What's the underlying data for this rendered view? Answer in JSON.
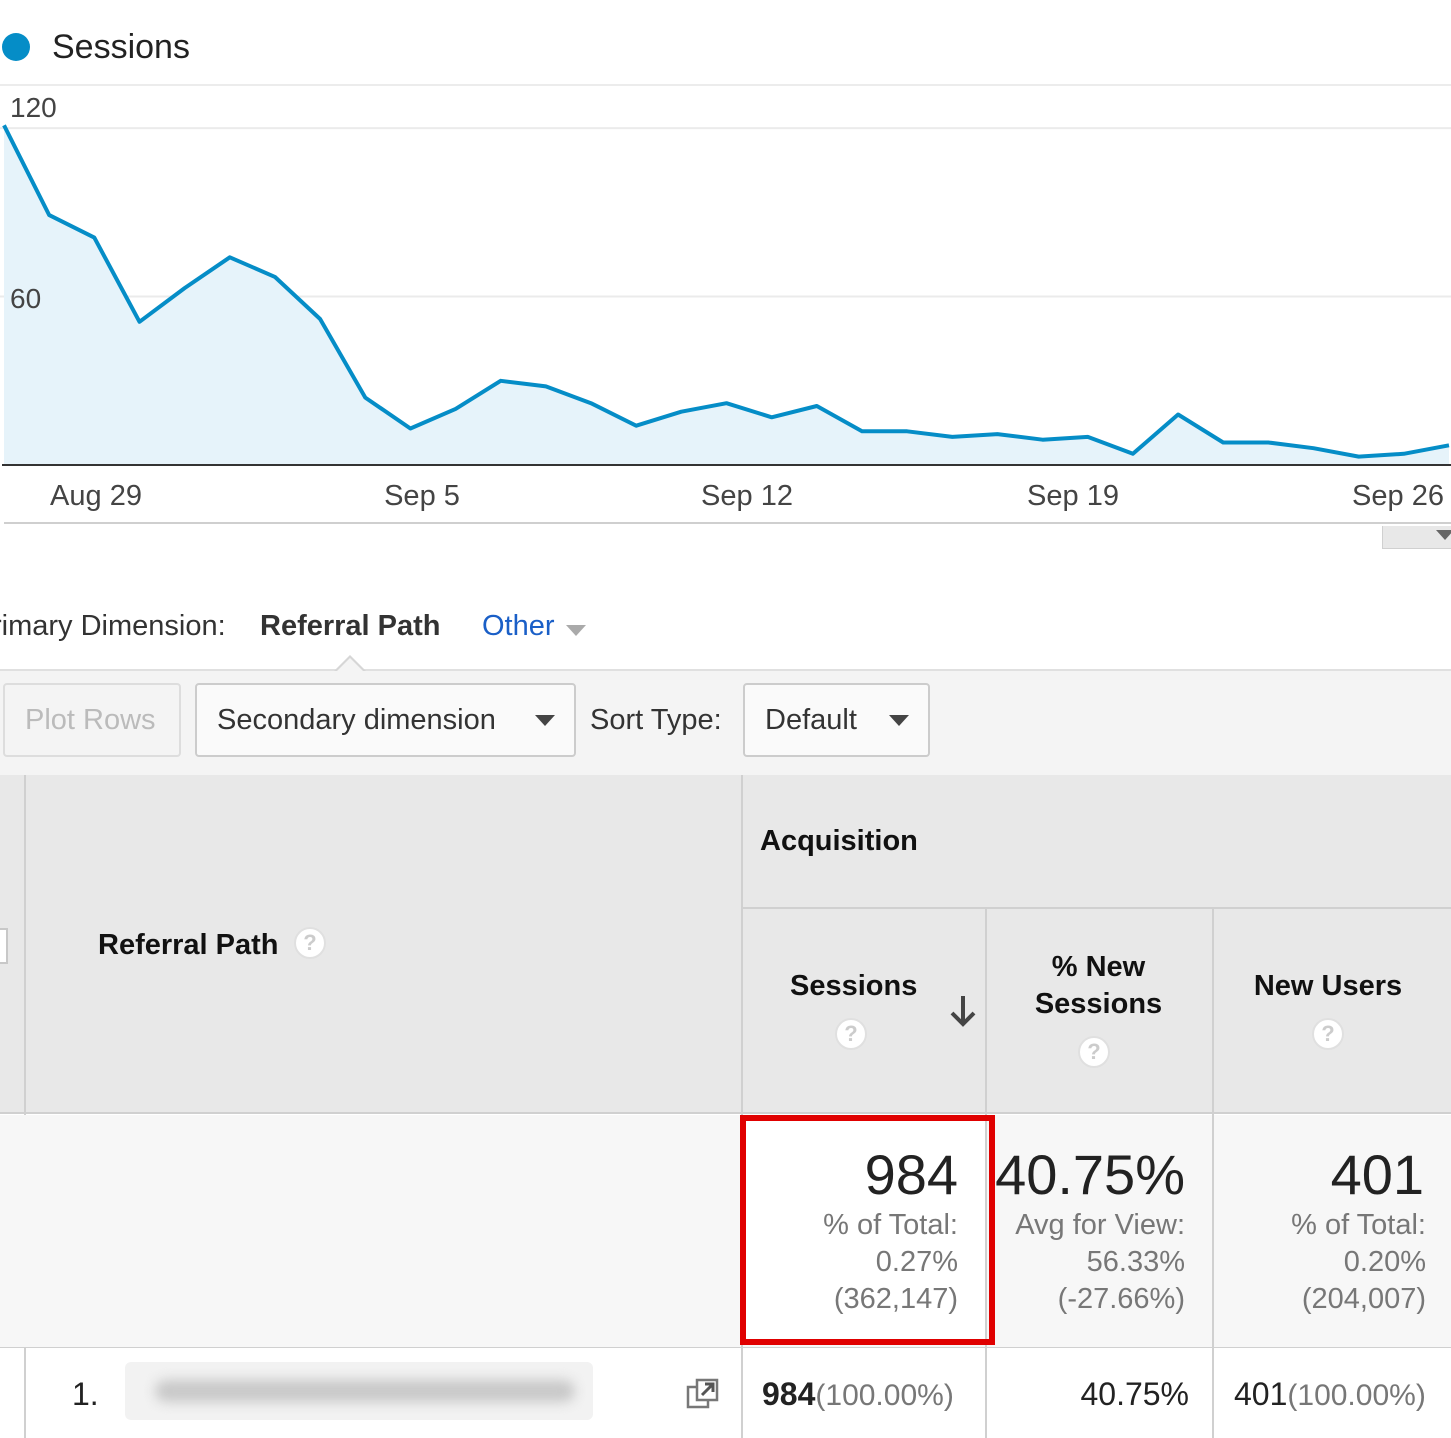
{
  "legend": {
    "label": "Sessions",
    "color": "#058dc7"
  },
  "chart_data": {
    "type": "area",
    "series": [
      {
        "name": "Sessions",
        "values": [
          121,
          89,
          81,
          51,
          63,
          74,
          67,
          52,
          24,
          13,
          20,
          30,
          28,
          22,
          14,
          19,
          22,
          17,
          21,
          12,
          12,
          10,
          11,
          9,
          10,
          4,
          18,
          8,
          8,
          6,
          3,
          4,
          7
        ]
      }
    ],
    "x_tick_labels": [
      "Aug 29",
      "Sep 5",
      "Sep 12",
      "Sep 19",
      "Sep 26"
    ],
    "y_tick_labels": [
      "120",
      "60"
    ],
    "ylim": [
      0,
      135
    ],
    "grid": true
  },
  "primary_dimension": {
    "label": "rimary Dimension:",
    "active": "Referral Path",
    "other": "Other"
  },
  "toolbar": {
    "plot_rows": "Plot Rows",
    "secondary_dimension": "Secondary dimension",
    "sort_type_label": "Sort Type:",
    "sort_type_value": "Default"
  },
  "table": {
    "group_header": "Acquisition",
    "columns": {
      "referral_path": "Referral Path",
      "sessions": "Sessions",
      "new_sessions_line1": "% New",
      "new_sessions_line2": "Sessions",
      "new_users": "New Users"
    },
    "help_glyph": "?",
    "summary": {
      "sessions": {
        "value": "984",
        "line1": "% of Total:",
        "line2": "0.27%",
        "line3": "(362,147)"
      },
      "new_sessions": {
        "value": "40.75%",
        "line1": "Avg for View:",
        "line2": "56.33%",
        "line3": "(-27.66%)"
      },
      "new_users": {
        "value": "401",
        "line1": "% of Total:",
        "line2": "0.20%",
        "line3": "(204,007)"
      }
    },
    "rows": [
      {
        "num": "1.",
        "sessions": "984",
        "sessions_pct": "(100.00%)",
        "new_sessions": "40.75%",
        "new_users": "401",
        "new_users_pct": "(100.00%)"
      }
    ]
  }
}
